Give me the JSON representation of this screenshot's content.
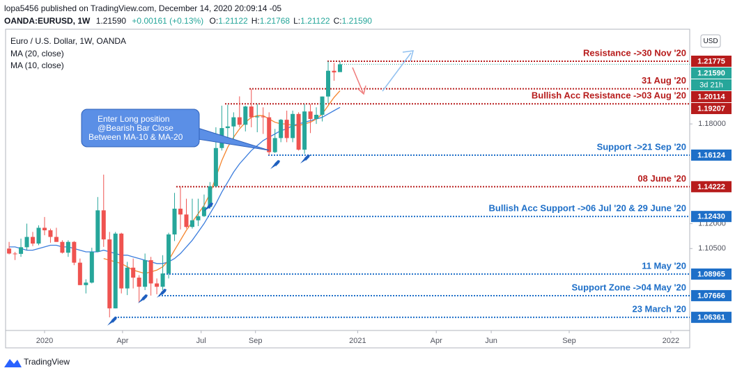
{
  "header": {
    "publisher": "lopa5456 published on TradingView.com, December 14, 2020 20:09:14 -05",
    "symbol": "OANDA:EURUSD, 1W",
    "last": "1.21590",
    "change": "+0.00161 (+0.13%)",
    "ohlc": [
      {
        "label": "O:",
        "value": "1.21122"
      },
      {
        "label": "H:",
        "value": "1.21768"
      },
      {
        "label": "L:",
        "value": "1.21122"
      },
      {
        "label": "C:",
        "value": "1.21590"
      }
    ]
  },
  "footer": {
    "brand": "TradingView"
  },
  "chart_data": {
    "type": "candlestick",
    "instrument": "Euro / U.S. Dollar, 1W, OANDA",
    "currency": "USD",
    "countdown": "3d 21h",
    "up_color": "#26a69a",
    "down_color": "#ef5350",
    "categories": [
      null,
      null,
      null,
      null,
      null,
      null,
      null,
      null,
      null,
      null,
      null,
      null,
      null,
      null,
      null,
      null,
      null,
      null,
      null,
      null,
      null,
      null,
      null,
      null,
      null,
      null,
      null,
      null,
      null,
      null,
      null,
      null,
      null,
      null,
      null,
      null,
      null,
      null,
      null,
      null,
      null,
      null,
      null,
      null,
      null,
      null,
      null,
      null,
      null,
      null,
      null,
      null,
      null,
      null,
      null,
      null,
      null
    ],
    "open": [
      1.105,
      1.102,
      1.1018,
      1.1058,
      1.112,
      1.108,
      1.1175,
      1.116,
      1.112,
      1.109,
      1.1025,
      1.109,
      1.0965,
      1.083,
      1.0845,
      1.103,
      1.128,
      1.1105,
      1.069,
      1.114,
      1.081,
      1.0935,
      1.0875,
      1.082,
      1.098,
      1.084,
      1.082,
      1.09,
      1.1135,
      1.129,
      1.1255,
      1.118,
      1.122,
      1.1245,
      1.13,
      1.1425,
      1.1655,
      1.1775,
      1.1785,
      1.184,
      1.1795,
      1.1905,
      1.184,
      1.1845,
      1.184,
      1.163,
      1.1715,
      1.1825,
      1.1715,
      1.186,
      1.1645,
      1.1875,
      1.183,
      1.1855,
      1.1965,
      1.212,
      1.2112
    ],
    "high": [
      1.109,
      1.103,
      1.111,
      1.12,
      1.115,
      1.119,
      1.124,
      1.117,
      1.1175,
      1.11,
      1.11,
      1.1095,
      1.099,
      1.0865,
      1.1055,
      1.136,
      1.1495,
      1.115,
      1.115,
      1.1145,
      1.097,
      1.099,
      1.089,
      1.102,
      1.1,
      1.087,
      1.101,
      1.1145,
      1.1385,
      1.1422,
      1.135,
      1.135,
      1.135,
      1.1375,
      1.145,
      1.178,
      1.191,
      1.1915,
      1.187,
      1.1966,
      1.191,
      1.2011,
      1.192,
      1.19,
      1.187,
      1.177,
      1.183,
      1.188,
      1.188,
      1.187,
      1.192,
      1.192,
      1.19,
      1.1965,
      1.2177,
      1.2167,
      1.2177
    ],
    "low": [
      1.1015,
      1.0981,
      1.1,
      1.104,
      1.1065,
      1.107,
      1.113,
      1.1085,
      1.109,
      1.102,
      1.1,
      1.095,
      1.083,
      1.078,
      1.084,
      1.103,
      1.106,
      1.0636,
      1.069,
      1.078,
      1.077,
      1.081,
      1.0725,
      1.08,
      1.0767,
      1.0775,
      1.08,
      1.087,
      1.1095,
      1.1165,
      1.117,
      1.117,
      1.1185,
      1.124,
      1.129,
      1.142,
      1.164,
      1.17,
      1.171,
      1.178,
      1.1755,
      1.178,
      1.175,
      1.174,
      1.1612,
      1.1625,
      1.169,
      1.169,
      1.169,
      1.164,
      1.162,
      1.1745,
      1.18,
      1.1815,
      1.1925,
      1.206,
      1.2112
    ],
    "close": [
      1.102,
      1.1016,
      1.1058,
      1.112,
      1.108,
      1.1175,
      1.116,
      1.112,
      1.109,
      1.1025,
      1.109,
      1.0965,
      1.083,
      1.0845,
      1.103,
      1.128,
      1.1105,
      1.069,
      1.114,
      1.081,
      1.0935,
      1.0875,
      1.082,
      1.098,
      1.084,
      1.082,
      1.09,
      1.1135,
      1.129,
      1.1255,
      1.118,
      1.122,
      1.1245,
      1.13,
      1.1425,
      1.1655,
      1.1775,
      1.1785,
      1.184,
      1.1795,
      1.1905,
      1.184,
      1.1845,
      1.184,
      1.163,
      1.1715,
      1.1825,
      1.1715,
      1.186,
      1.1645,
      1.1875,
      1.183,
      1.1855,
      1.1965,
      1.212,
      1.211,
      1.2159
    ],
    "series": [
      {
        "name": "MA (20, close)",
        "color": "#3b7ddd",
        "values": [
          1.106,
          1.106,
          1.105,
          1.104,
          1.104,
          1.105,
          1.106,
          1.107,
          1.107,
          1.106,
          1.106,
          1.105,
          1.104,
          1.103,
          1.103,
          1.103,
          1.104,
          1.103,
          1.102,
          1.101,
          1.101,
          1.1,
          1.099,
          1.098,
          1.097,
          1.096,
          1.096,
          1.097,
          1.099,
          1.102,
          1.106,
          1.11,
          1.115,
          1.12,
          1.126,
          1.132,
          1.139,
          1.145,
          1.151,
          1.156,
          1.16,
          1.164,
          1.167,
          1.17,
          1.172,
          1.174,
          1.176,
          1.177,
          1.179,
          1.18,
          1.181,
          1.182,
          1.183,
          1.184,
          1.186,
          1.188,
          1.19
        ]
      },
      {
        "name": "MA (10, close)",
        "color": "#f5842c",
        "values": [
          null,
          null,
          null,
          null,
          null,
          null,
          null,
          null,
          null,
          null,
          null,
          null,
          null,
          null,
          null,
          null,
          1.099,
          1.098,
          1.097,
          1.096,
          1.094,
          1.092,
          1.091,
          1.09,
          1.091,
          1.092,
          1.094,
          1.098,
          1.104,
          1.11,
          1.116,
          1.121,
          1.126,
          1.131,
          1.138,
          1.148,
          1.158,
          1.166,
          1.172,
          1.177,
          1.181,
          1.184,
          1.185,
          1.185,
          1.183,
          1.181,
          1.18,
          1.18,
          1.179,
          1.179,
          1.18,
          1.181,
          1.183,
          1.186,
          1.191,
          1.196,
          1.2
        ]
      }
    ],
    "last_price": 1.2159,
    "last_price_label": "1.21590",
    "last_price_color": "#26a69a",
    "levels": [
      {
        "name": "Resistance ->30 Nov '20",
        "value": 1.21775,
        "label": "1.21775",
        "color": "#b71c1c"
      },
      {
        "name": "31 Aug '20",
        "value": 1.20114,
        "label": "1.20114",
        "color": "#b71c1c"
      },
      {
        "name": "Bullish Acc Resistance ->03 Aug '20",
        "value": 1.19207,
        "label": "1.19207",
        "color": "#b71c1c"
      },
      {
        "name": "Support ->21 Sep '20",
        "value": 1.16124,
        "label": "1.16124",
        "color": "#1e6fc8"
      },
      {
        "name": "08 June '20",
        "value": 1.14222,
        "label": "1.14222",
        "color": "#b71c1c"
      },
      {
        "name": "Bullish Acc Support ->06 Jul '20 & 29 June '20",
        "value": 1.1243,
        "label": "1.12430",
        "color": "#1e6fc8"
      },
      {
        "name": "11 May '20",
        "value": 1.08965,
        "label": "1.08965",
        "color": "#1e6fc8"
      },
      {
        "name": "Support Zone ->04 May '20",
        "value": 1.07666,
        "label": "1.07666",
        "color": "#1e6fc8"
      },
      {
        "name": "23 March '20",
        "value": 1.06361,
        "label": "1.06361",
        "color": "#1e6fc8"
      }
    ],
    "annotations": [
      {
        "lines": [
          "Enter Long position",
          "@Bearish Bar Close",
          "Between MA-10 & MA-20"
        ]
      }
    ],
    "xlim": [
      -0.6,
      115.2
    ],
    "xticks": [
      {
        "value": 6.0,
        "label": "2020"
      },
      {
        "value": 19.2,
        "label": "Apr"
      },
      {
        "value": 32.5,
        "label": "Jul"
      },
      {
        "value": 41.7,
        "label": "Sep"
      },
      {
        "value": 59.0,
        "label": "2021"
      },
      {
        "value": 72.3,
        "label": "Apr"
      },
      {
        "value": 81.6,
        "label": "Jun"
      },
      {
        "value": 94.8,
        "label": "Sep"
      },
      {
        "value": 112.0,
        "label": "2022"
      }
    ],
    "ylim": [
      1.0557,
      1.237
    ],
    "yticks": [
      {
        "value": 1.18,
        "label": "1.18000"
      },
      {
        "value": 1.12,
        "label": "1.12000"
      },
      {
        "value": 1.105,
        "label": "1.10500"
      }
    ]
  }
}
